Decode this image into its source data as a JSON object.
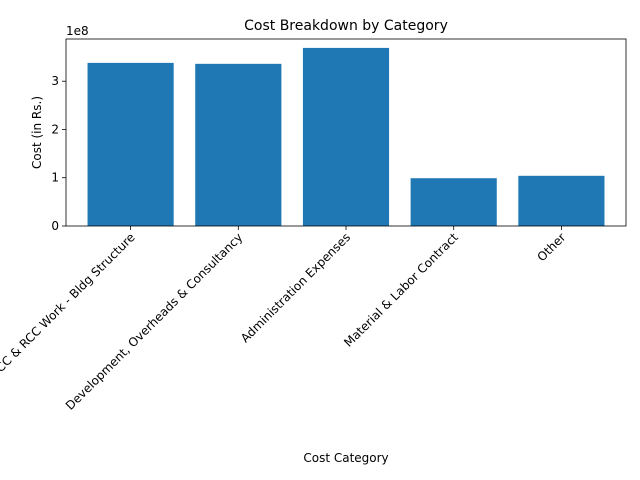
{
  "chart_data": {
    "type": "bar",
    "title": "Cost Breakdown by Category",
    "xlabel": "Cost Category",
    "ylabel": "Cost (in Rs.)",
    "offset_text": "1e8",
    "categories": [
      "PCC & RCC Work - Bldg Structure",
      "Development, Overheads & Consultancy",
      "Administration Expenses",
      "Material & Labor Contract",
      "Other"
    ],
    "values": [
      338000000,
      336000000,
      369000000,
      99000000,
      104000000
    ],
    "ylim": [
      0,
      387450000
    ],
    "yticks": [
      0,
      100000000,
      200000000,
      300000000
    ],
    "ytick_labels": [
      "0",
      "1",
      "2",
      "3"
    ],
    "bar_color": "#1f77b4",
    "grid": false,
    "legend": "none"
  }
}
